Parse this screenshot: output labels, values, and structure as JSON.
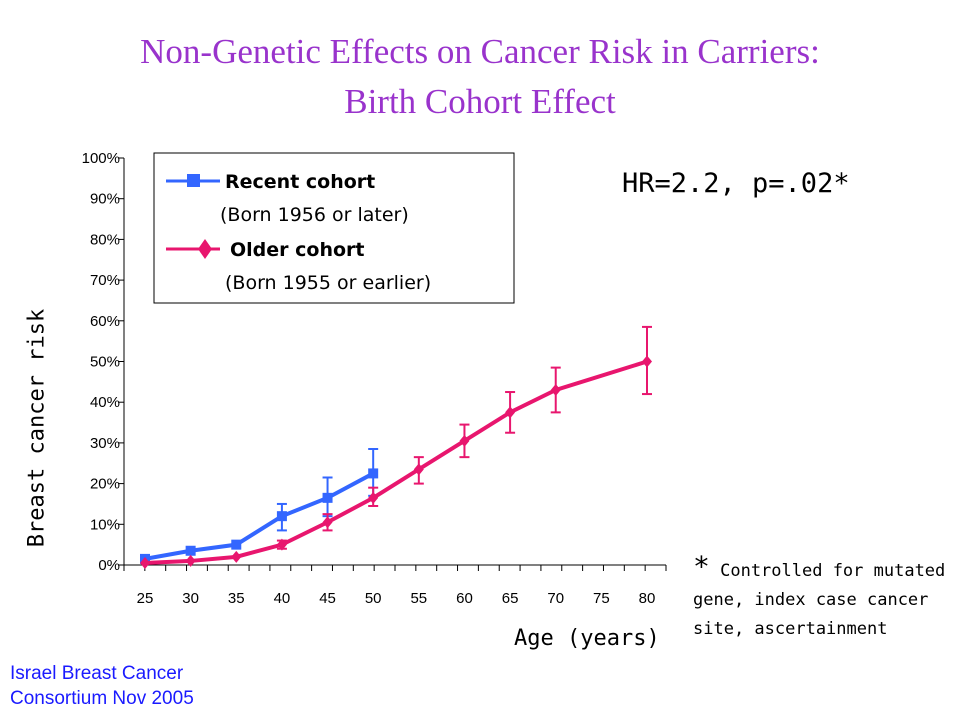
{
  "title_line1": "Non-Genetic Effects on Cancer Risk in Carriers:",
  "title_line2": "Birth Cohort Effect",
  "hr_text": "HR=2.2, p=.02*",
  "footnote_star": "*",
  "footnote_text": "Controlled for mutated gene, index case cancer site, ascertainment",
  "credit_line1": "Israel Breast Cancer",
  "credit_line2": "Consortium Nov 2005",
  "chart_data": {
    "type": "line",
    "title": "",
    "xlabel": "Age (years)",
    "ylabel": "Breast cancer risk",
    "xlim": [
      25,
      80
    ],
    "ylim": [
      0,
      100
    ],
    "x_ticks": [
      25,
      30,
      35,
      40,
      45,
      50,
      55,
      60,
      65,
      70,
      75,
      80
    ],
    "y_ticks": [
      "0%",
      "10%",
      "20%",
      "30%",
      "40%",
      "50%",
      "60%",
      "70%",
      "80%",
      "90%",
      "100%"
    ],
    "grid": false,
    "legend_position": "top-left",
    "series": [
      {
        "name": "Recent cohort",
        "legend_sub": "(Born 1956 or later)",
        "color": "#3366ff",
        "marker": "square",
        "points": [
          {
            "x": 25,
            "y": 1.5,
            "lo": 1.5,
            "hi": 1.5
          },
          {
            "x": 30,
            "y": 3.5,
            "lo": 3.5,
            "hi": 3.5
          },
          {
            "x": 35,
            "y": 5,
            "lo": 5,
            "hi": 5
          },
          {
            "x": 40,
            "y": 12,
            "lo": 8.5,
            "hi": 15
          },
          {
            "x": 45,
            "y": 16.5,
            "lo": 12,
            "hi": 21.5
          },
          {
            "x": 50,
            "y": 22.5,
            "lo": 17,
            "hi": 28.5
          }
        ]
      },
      {
        "name": "Older cohort",
        "legend_sub": "(Born 1955 or earlier)",
        "color": "#e8166e",
        "marker": "diamond",
        "points": [
          {
            "x": 25,
            "y": 0.5,
            "lo": 0.5,
            "hi": 0.5
          },
          {
            "x": 30,
            "y": 1,
            "lo": 1,
            "hi": 1
          },
          {
            "x": 35,
            "y": 2,
            "lo": 2,
            "hi": 2
          },
          {
            "x": 40,
            "y": 5,
            "lo": 4,
            "hi": 6
          },
          {
            "x": 45,
            "y": 10.5,
            "lo": 8.5,
            "hi": 12.5
          },
          {
            "x": 50,
            "y": 16.5,
            "lo": 14.5,
            "hi": 19
          },
          {
            "x": 55,
            "y": 23.5,
            "lo": 20,
            "hi": 26.5
          },
          {
            "x": 60,
            "y": 30.5,
            "lo": 26.5,
            "hi": 34.5
          },
          {
            "x": 65,
            "y": 37.5,
            "lo": 32.5,
            "hi": 42.5
          },
          {
            "x": 70,
            "y": 43,
            "lo": 37.5,
            "hi": 48.5
          },
          {
            "x": 80,
            "y": 50,
            "lo": 42,
            "hi": 58.5
          }
        ]
      }
    ]
  }
}
